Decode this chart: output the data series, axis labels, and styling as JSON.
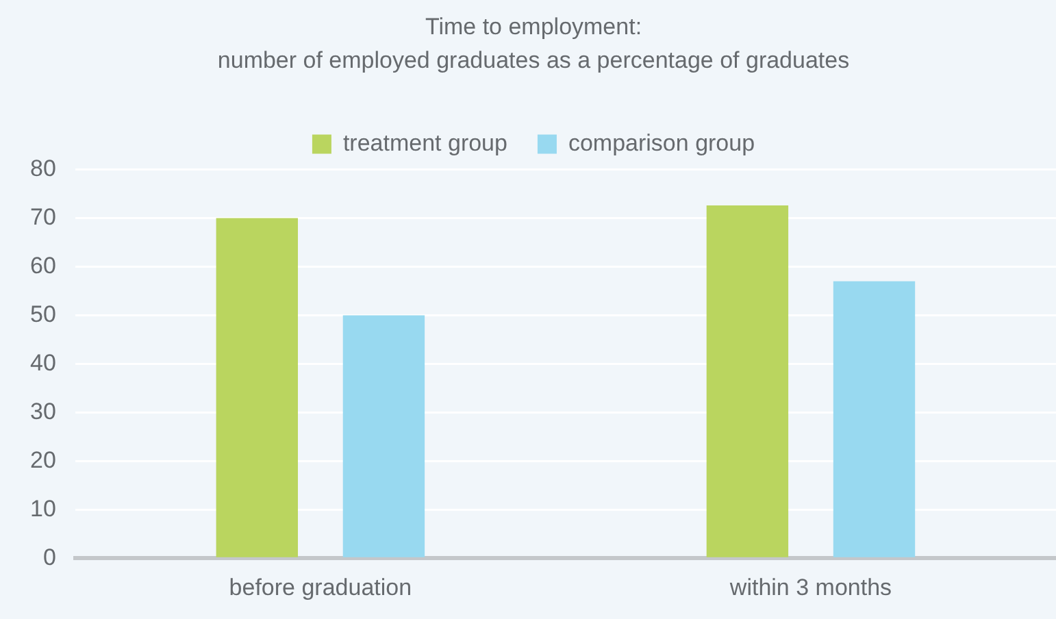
{
  "chart_data": {
    "type": "bar",
    "title": "Time to employment:",
    "subtitle": "number of employed graduates as a percentage of graduates",
    "categories": [
      "before graduation",
      "within 3 months"
    ],
    "series": [
      {
        "name": "treatment group",
        "color": "#bad55f",
        "values": [
          70,
          72.6
        ]
      },
      {
        "name": "comparison group",
        "color": "#98d9f0",
        "values": [
          50,
          57
        ]
      }
    ],
    "ylim": [
      0,
      80
    ],
    "yticks": [
      0,
      10,
      20,
      30,
      40,
      50,
      60,
      70,
      80
    ],
    "grid": "y",
    "legend": "top"
  }
}
